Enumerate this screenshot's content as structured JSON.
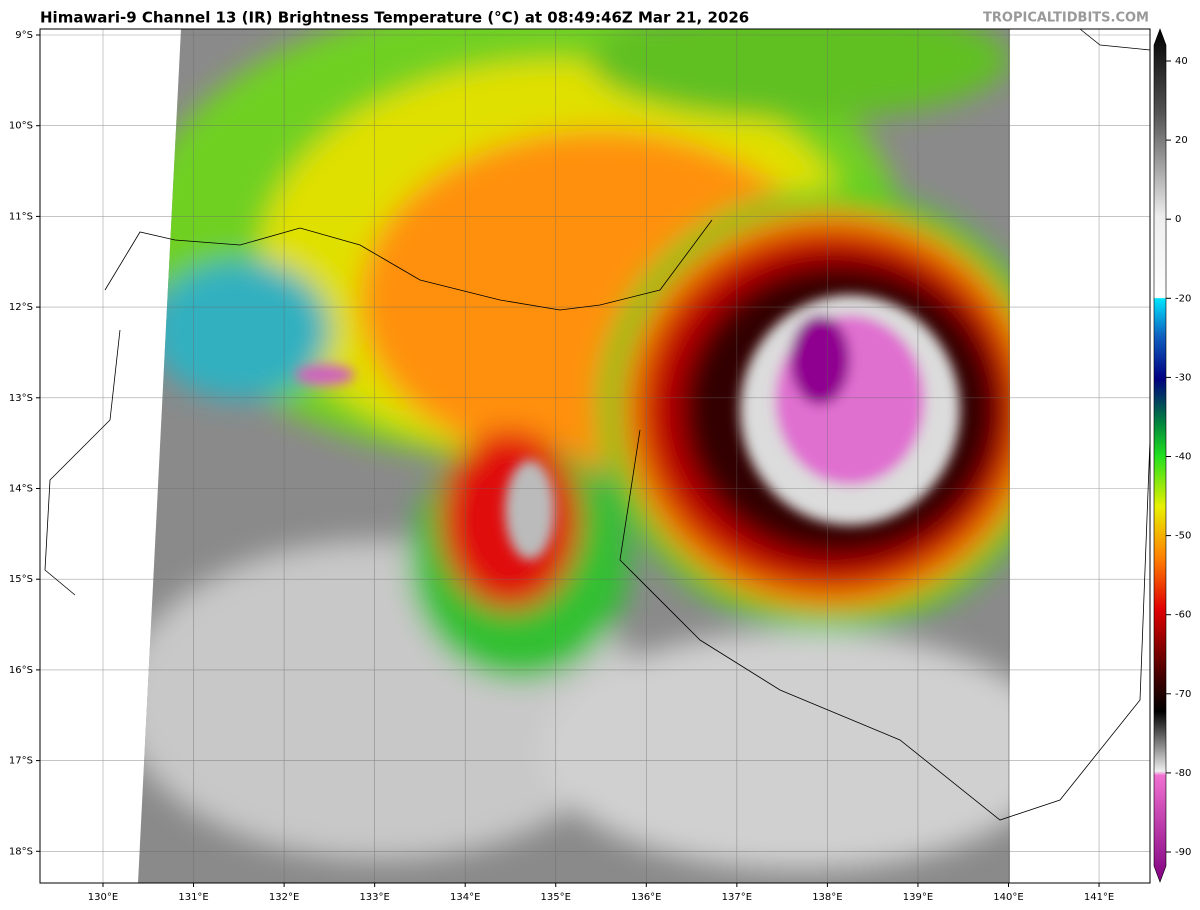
{
  "header": {
    "title": "Himawari-9 Channel 13 (IR) Brightness Temperature (°C) at 08:49:46Z Mar 21, 2026",
    "credit": "TROPICALTIDBITS.COM"
  },
  "map": {
    "lat_labels": [
      "9°S",
      "10°S",
      "11°S",
      "12°S",
      "13°S",
      "14°S",
      "15°S",
      "16°S",
      "17°S",
      "18°S"
    ],
    "lon_labels": [
      "130°E",
      "131°E",
      "132°E",
      "133°E",
      "134°E",
      "135°E",
      "136°E",
      "137°E",
      "138°E",
      "139°E",
      "140°E",
      "141°E"
    ]
  },
  "colorbar": {
    "ticks": [
      40,
      20,
      0,
      -20,
      -30,
      -40,
      -50,
      -60,
      -70,
      -80,
      -90
    ]
  }
}
